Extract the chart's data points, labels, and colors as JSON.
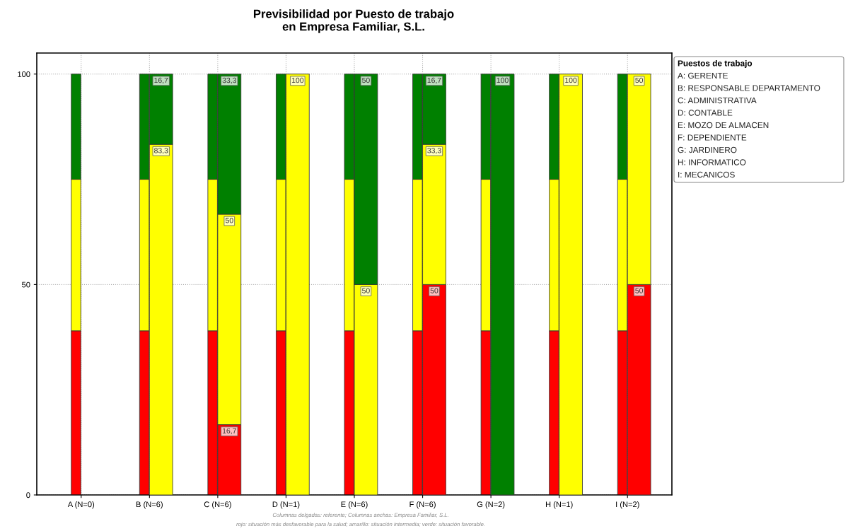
{
  "chart_data": [
    {
      "type": "bar",
      "title": "Previsibilidad por Puesto de trabajo\nen Empresa Familiar, S.L.",
      "categories": [
        "A (N=0)",
        "B (N=6)",
        "C (N=6)",
        "D (N=1)",
        "E (N=6)",
        "F (N=6)",
        "G (N=2)",
        "H (N=1)",
        "I (N=2)"
      ],
      "stacked": true,
      "ylim": [
        0,
        105
      ],
      "yticks": [
        0,
        50,
        100
      ],
      "grid": true,
      "legend_title": "Puestos de trabajo",
      "series": [
        {
          "color": "#ff0000",
          "values": [
            39,
            39,
            39,
            39,
            39,
            39,
            39,
            39,
            39
          ]
        },
        {
          "color": "#ffff00",
          "values": [
            36,
            36,
            36,
            36,
            36,
            36,
            36,
            36,
            36
          ]
        },
        {
          "color": "#008000",
          "values": [
            25,
            25,
            25,
            25,
            25,
            25,
            25,
            25,
            25
          ]
        }
      ],
      "annotations": [
        "A: GERENTE",
        "B: RESPONSABLE DEPARTAMENTO",
        "C: ADMINISTRATIVA",
        "D: CONTABLE",
        "E: MOZO DE ALMACEN",
        "F: DEPENDIENTE",
        "G: JARDINERO",
        "H: INFORMATICO",
        "I: MECANICOS",
        "Columnas delgadas: referente; Columnas anchas: Empresa Familiar, S.L.",
        "rojo: situación más desfavorable para la salud; amarillo: situación intermedia; verde: situación favorable."
      ]
    },
    {
      "type": "bar",
      "categories": [
        null,
        null,
        null,
        null,
        null,
        null,
        null,
        null,
        null
      ],
      "stacked": true,
      "ylim": [
        0,
        105
      ],
      "tick_labels": false,
      "series": [
        {
          "color": "#ff0000",
          "values": [
            null,
            0,
            16.7,
            0,
            0,
            50,
            0,
            0,
            50
          ],
          "value_labels": [
            null,
            null,
            "16,7",
            null,
            null,
            "50",
            null,
            null,
            "50"
          ]
        },
        {
          "color": "#ffff00",
          "values": [
            null,
            83.3,
            50,
            100,
            50,
            33.3,
            0,
            100,
            50
          ],
          "value_labels": [
            null,
            "83,3",
            "50",
            "100",
            "50",
            "33,3",
            null,
            "100",
            "50"
          ]
        },
        {
          "color": "#008000",
          "values": [
            null,
            16.7,
            33.3,
            0,
            50,
            16.7,
            100,
            0,
            0
          ],
          "value_labels": [
            null,
            "16,7",
            "33,3",
            null,
            "50",
            "16,7",
            "100",
            null,
            null
          ]
        }
      ]
    }
  ]
}
